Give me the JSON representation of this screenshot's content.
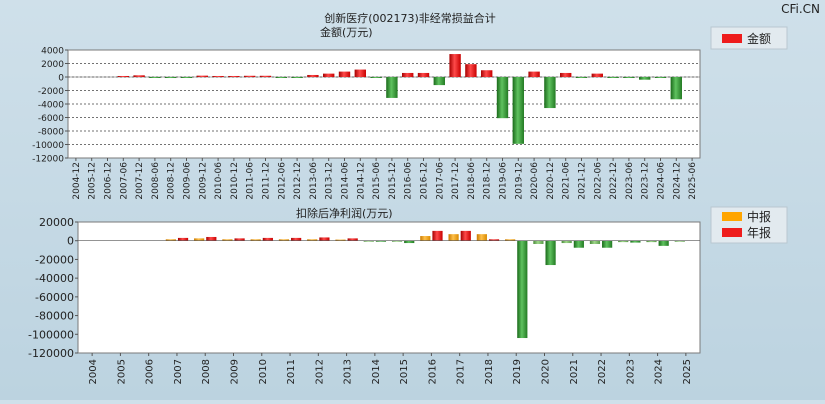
{
  "watermark": "CFi.CN",
  "chart_data": [
    {
      "type": "bar",
      "title": "创新医疗(002173)非经常损益合计",
      "subtitle": "金额(万元)",
      "legend": {
        "position": "top-right",
        "items": [
          {
            "label": "金额",
            "color": "#ee1c1c"
          }
        ]
      },
      "ylim": [
        -12000,
        4000
      ],
      "yticks": [
        4000,
        2000,
        0,
        -2000,
        -4000,
        -6000,
        -8000,
        -10000,
        -12000
      ],
      "grid": true,
      "categories": [
        "2004-12",
        "2005-12",
        "2006-12",
        "2007-06",
        "2007-12",
        "2008-06",
        "2008-12",
        "2009-06",
        "2009-12",
        "2010-06",
        "2010-12",
        "2011-06",
        "2011-12",
        "2012-06",
        "2012-12",
        "2013-06",
        "2013-12",
        "2014-06",
        "2014-12",
        "2015-06",
        "2015-12",
        "2016-06",
        "2016-12",
        "2017-06",
        "2017-12",
        "2018-06",
        "2018-12",
        "2019-06",
        "2019-12",
        "2020-06",
        "2020-12",
        "2021-06",
        "2021-12",
        "2022-06",
        "2022-12",
        "2023-06",
        "2023-12",
        "2024-06",
        "2024-12",
        "2025-06"
      ],
      "series": [
        {
          "name": "金额",
          "color": "#ee1c1c",
          "values": [
            0,
            0,
            0,
            150,
            250,
            -100,
            -150,
            -100,
            200,
            150,
            150,
            180,
            180,
            -100,
            -50,
            300,
            500,
            800,
            1100,
            -50,
            -3100,
            600,
            600,
            -1200,
            3400,
            1900,
            1000,
            -6100,
            -9900,
            800,
            -4600,
            600,
            -50,
            500,
            -50,
            -80,
            -400,
            -50,
            -3300,
            0
          ]
        }
      ]
    },
    {
      "type": "bar",
      "title": "扣除后净利润(万元)",
      "legend": {
        "position": "top-right",
        "items": [
          {
            "label": "中报",
            "color": "#ffa500"
          },
          {
            "label": "年报",
            "color": "#ee1c1c"
          }
        ]
      },
      "ylim": [
        -120000,
        20000
      ],
      "yticks": [
        20000,
        0,
        -20000,
        -40000,
        -60000,
        -80000,
        -100000,
        -120000
      ],
      "grid": false,
      "categories": [
        "2004",
        "2005",
        "2006",
        "2007",
        "2008",
        "2009",
        "2010",
        "2011",
        "2012",
        "2013",
        "2014",
        "2015",
        "2016",
        "2017",
        "2018",
        "2019",
        "2020",
        "2021",
        "2022",
        "2023",
        "2024",
        "2025"
      ],
      "series": [
        {
          "name": "中报",
          "color": "#ffa500",
          "values": [
            null,
            null,
            null,
            1500,
            2500,
            1500,
            1500,
            1500,
            1500,
            1200,
            -500,
            -1000,
            5000,
            7000,
            7000,
            1500,
            -3500,
            -2500,
            -3500,
            -1500,
            -1500,
            -1000
          ]
        },
        {
          "name": "年报",
          "color": "#ee1c1c",
          "values": [
            null,
            null,
            null,
            3000,
            4000,
            2500,
            3000,
            3000,
            3500,
            2500,
            -1000,
            -2500,
            10500,
            10500,
            1500,
            -104000,
            -26000,
            -7500,
            -7500,
            -2000,
            -5500,
            null
          ]
        }
      ]
    }
  ]
}
